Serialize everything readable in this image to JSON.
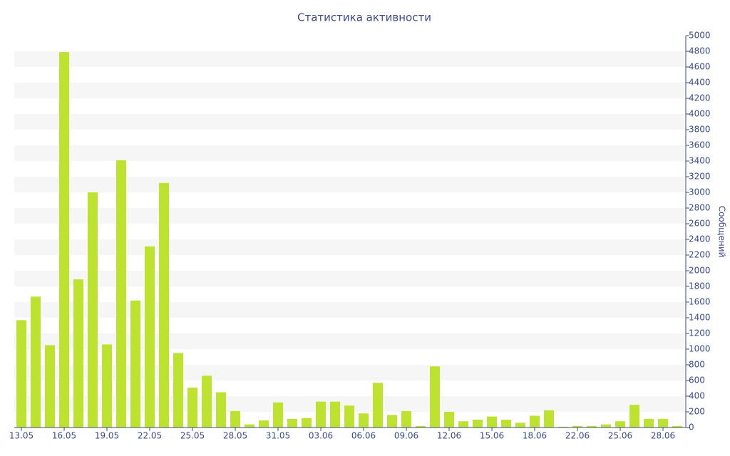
{
  "chart_data": {
    "type": "bar",
    "title": "Статистика активности",
    "y_axis_label": "Сообщений",
    "categories": [
      "13.05",
      null,
      null,
      "16.05",
      null,
      null,
      "19.05",
      null,
      null,
      "22.05",
      null,
      null,
      "25.05",
      null,
      null,
      "28.05",
      null,
      null,
      "31.05",
      null,
      null,
      "03.06",
      null,
      null,
      "06.06",
      null,
      null,
      "09.06",
      null,
      null,
      "12.06",
      null,
      null,
      "15.06",
      null,
      null,
      "18.06",
      null,
      null,
      "22.06",
      null,
      null,
      "25.06",
      null,
      null,
      "28.06",
      null
    ],
    "values": [
      1370,
      1670,
      1050,
      4790,
      1890,
      3000,
      1060,
      3410,
      1620,
      2310,
      3120,
      950,
      510,
      660,
      450,
      210,
      40,
      90,
      320,
      110,
      120,
      330,
      330,
      280,
      180,
      570,
      160,
      210,
      20,
      780,
      200,
      80,
      100,
      140,
      100,
      60,
      150,
      220,
      10,
      20,
      20,
      40,
      80,
      290,
      110,
      110,
      20
    ],
    "color": "#bde22f",
    "ylim": [
      0,
      5000
    ],
    "yticks": [
      0,
      200,
      400,
      600,
      800,
      1000,
      1200,
      1400,
      1600,
      1800,
      2000,
      2200,
      2400,
      2600,
      2800,
      3000,
      3200,
      3400,
      3600,
      3800,
      4000,
      4200,
      4400,
      4600,
      4800,
      5000
    ],
    "grid": true
  }
}
